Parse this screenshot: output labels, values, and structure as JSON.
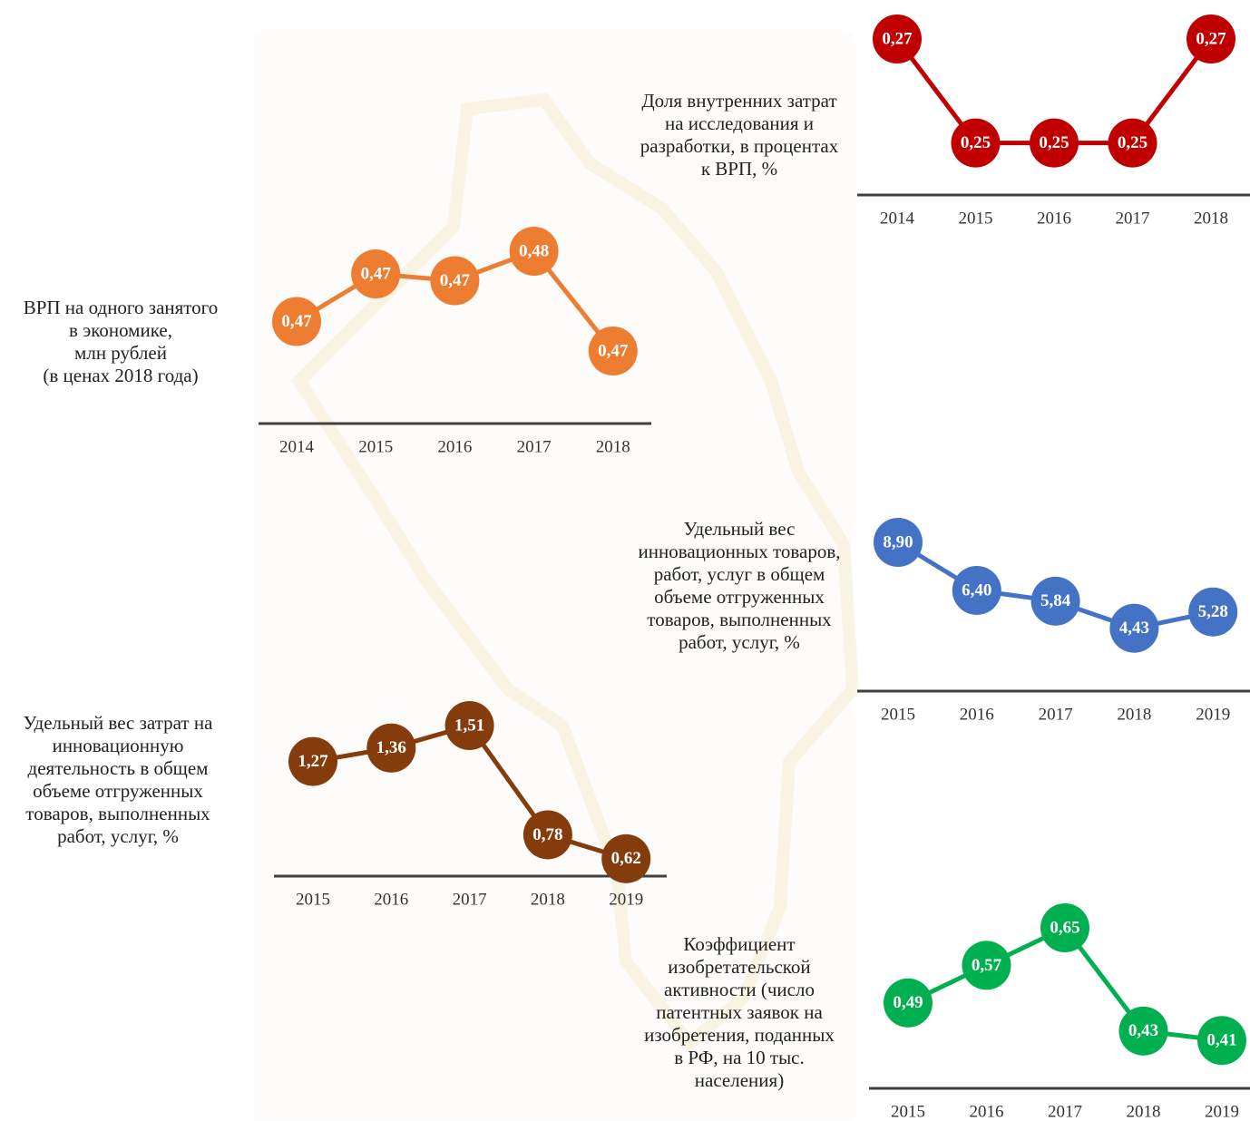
{
  "chart_data": [
    {
      "type": "line",
      "title": [
        "Доля внутренних затрат",
        "на исследования и",
        "разработки, в процентах",
        "к ВРП, %"
      ],
      "categories": [
        "2014",
        "2015",
        "2016",
        "2017",
        "2018"
      ],
      "series": [
        {
          "color": "#c00000",
          "values": [
            0.27,
            0.25,
            0.25,
            0.25,
            0.27
          ],
          "value_labels": [
            "0,27",
            "0,25",
            "0,25",
            "0,25",
            "0,27"
          ]
        }
      ],
      "ylim": [
        0.24,
        0.27
      ]
    },
    {
      "type": "line",
      "title": [
        "ВРП на одного занятого",
        "в экономике,",
        "млн рублей",
        "(в ценах 2018 года)"
      ],
      "categories": [
        "2014",
        "2015",
        "2016",
        "2017",
        "2018"
      ],
      "series": [
        {
          "color": "#ed7d31",
          "values": [
            0.4724,
            0.4745,
            0.4742,
            0.4755,
            0.4711
          ],
          "value_labels": [
            "0,47",
            "0,47",
            "0,47",
            "0,48",
            "0,47"
          ]
        }
      ],
      "ylim": [
        0.4679,
        0.4755
      ]
    },
    {
      "type": "line",
      "title": [
        "Удельный вес",
        "инновационных товаров,",
        "работ, услуг в общем",
        "объеме отгруженных",
        "товаров, выполненных",
        "работ, услуг, %"
      ],
      "categories": [
        "2015",
        "2016",
        "2017",
        "2018",
        "2019"
      ],
      "series": [
        {
          "color": "#4472c4",
          "values": [
            8.9,
            6.4,
            5.84,
            4.43,
            5.28
          ],
          "value_labels": [
            "8,90",
            "6,40",
            "5,84",
            "4,43",
            "5,28"
          ]
        }
      ],
      "ylim": [
        1.16,
        8.9
      ]
    },
    {
      "type": "line",
      "title": [
        "Удельный вес затрат на",
        "инновационную",
        "деятельность в общем",
        "объеме отгруженных",
        "товаров, выполненных",
        "работ, услуг, %"
      ],
      "categories": [
        "2015",
        "2016",
        "2017",
        "2018",
        "2019"
      ],
      "series": [
        {
          "color": "#843c0c",
          "values": [
            1.27,
            1.36,
            1.51,
            0.78,
            0.62
          ],
          "value_labels": [
            "1,27",
            "1,36",
            "1,51",
            "0,78",
            "0,62"
          ]
        }
      ],
      "ylim": [
        0.504,
        1.51
      ]
    },
    {
      "type": "line",
      "title": [
        "Коэффициент",
        "изобретательской",
        "активности (число",
        "патентных заявок на",
        "изобретения, поданных",
        "в РФ, на 10 тыс.",
        "населения)"
      ],
      "categories": [
        "2015",
        "2016",
        "2017",
        "2018",
        "2019"
      ],
      "series": [
        {
          "color": "#00b050",
          "values": [
            0.49,
            0.57,
            0.65,
            0.43,
            0.41
          ],
          "value_labels": [
            "0,49",
            "0,57",
            "0,65",
            "0,43",
            "0,41"
          ]
        }
      ],
      "ylim": [
        0.308,
        0.65
      ]
    }
  ]
}
